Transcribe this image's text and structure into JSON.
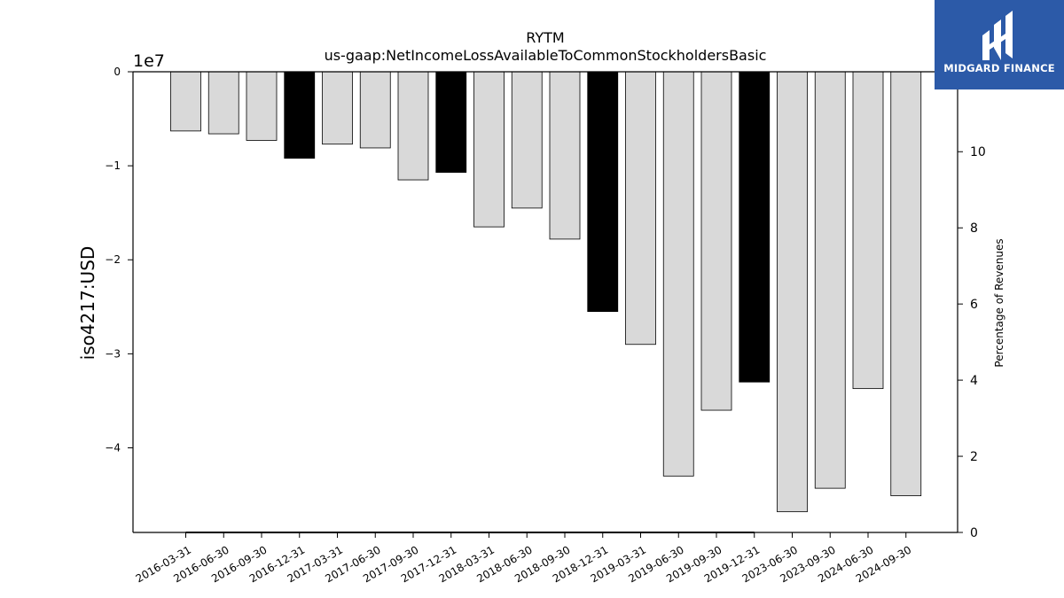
{
  "chart_data": {
    "type": "bar",
    "title": "RYTM",
    "subtitle": "us-gaap:NetIncomeLossAvailableToCommonStockholdersBasic",
    "ylabel": "iso4217:USD",
    "y_offset_label": "1e7",
    "y2label": "Percentage of Revenues",
    "categories": [
      "2016-03-31",
      "2016-06-30",
      "2016-09-30",
      "2016-12-31",
      "2017-03-31",
      "2017-06-30",
      "2017-09-30",
      "2017-12-31",
      "2018-03-31",
      "2018-06-30",
      "2018-09-30",
      "2018-12-31",
      "2019-03-31",
      "2019-06-30",
      "2019-09-30",
      "2019-12-31",
      "2023-06-30",
      "2023-09-30",
      "2024-06-30",
      "2024-09-30"
    ],
    "values": [
      -6300000,
      -6600000,
      -7300000,
      -9200000,
      -7700000,
      -8100000,
      -11500000,
      -10700000,
      -16500000,
      -14500000,
      -17800000,
      -25500000,
      -29000000,
      -43000000,
      -36000000,
      -33000000,
      -46800000,
      -44300000,
      -33700000,
      -45100000
    ],
    "highlighted": [
      false,
      false,
      false,
      true,
      false,
      false,
      false,
      true,
      false,
      false,
      false,
      true,
      false,
      false,
      false,
      true,
      false,
      false,
      false,
      false
    ],
    "colors": {
      "normal": "#d9d9d9",
      "highlight": "#000000",
      "edge": "#000000"
    },
    "ylim": [
      -49000000,
      0
    ],
    "yticks": [
      0,
      -10000000,
      -20000000,
      -30000000,
      -40000000
    ],
    "ytick_labels": [
      "0",
      "−1",
      "−2",
      "−3",
      "−4"
    ],
    "y2lim": [
      0,
      12.1
    ],
    "y2ticks": [
      0,
      2,
      4,
      6,
      8,
      10
    ],
    "y2tick_labels": [
      "0",
      "2",
      "4",
      "6",
      "8",
      "10"
    ],
    "secondary_line": {
      "values": [
        0,
        0,
        0,
        0,
        0,
        0,
        0,
        0,
        0,
        0,
        0,
        0,
        0,
        0,
        0,
        0
      ],
      "from_index": 0,
      "to_index": 15
    }
  },
  "logo": {
    "text": "MIDGARD FINANCE"
  }
}
